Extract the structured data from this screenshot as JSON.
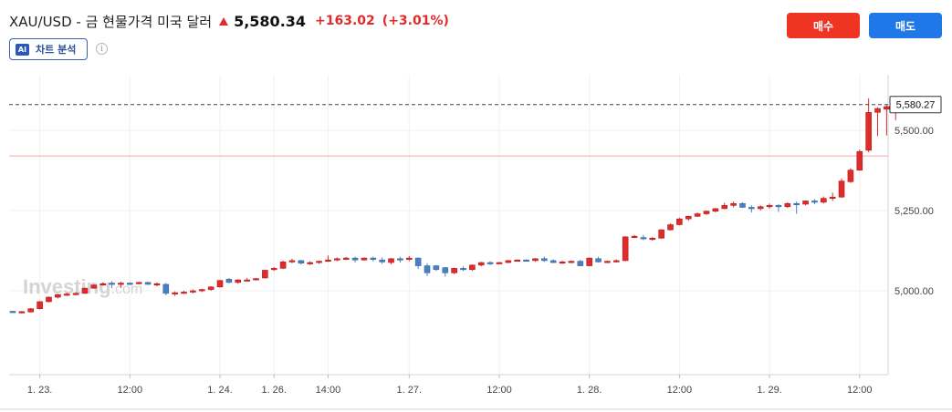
{
  "header": {
    "title": "XAU/USD - 금 현물가격 미국 달러",
    "price": "5,580.34",
    "change": "+163.02",
    "change_pct": "(+3.01%)"
  },
  "buttons": {
    "buy": "매수",
    "sell": "매도"
  },
  "ai": {
    "badge": "AI",
    "label": "차트 분석"
  },
  "info_icon": "i",
  "watermark": {
    "brand": "Investing",
    "suffix": ".com"
  },
  "colors": {
    "up": "#e02b2b",
    "down": "#4a80c2",
    "buy": "#ee3524",
    "sell": "#1f77e8"
  },
  "chart_data": {
    "type": "candlestick",
    "ylim": [
      4808,
      5760
    ],
    "yticks": [
      {
        "value": 5000,
        "label": "5,000.00"
      },
      {
        "value": 5250,
        "label": "5,250.00"
      },
      {
        "value": 5500,
        "label": "5,500.00"
      }
    ],
    "xticks": [
      {
        "index": 3,
        "label": "1. 23."
      },
      {
        "index": 13,
        "label": "12:00"
      },
      {
        "index": 23,
        "label": "1. 24."
      },
      {
        "index": 29,
        "label": "1. 26."
      },
      {
        "index": 35,
        "label": "14:00"
      },
      {
        "index": 44,
        "label": "1. 27."
      },
      {
        "index": 54,
        "label": "12:00"
      },
      {
        "index": 64,
        "label": "1. 28."
      },
      {
        "index": 74,
        "label": "12:00"
      },
      {
        "index": 84,
        "label": "1. 29."
      },
      {
        "index": 94,
        "label": "12:00"
      }
    ],
    "last_price": {
      "value": 5580.27,
      "label": "5,580.27"
    },
    "reference_line": 5420,
    "grid": true,
    "candles": [
      [
        4936,
        4938,
        4933,
        4935
      ],
      [
        4932,
        4937,
        4930,
        4935
      ],
      [
        4934,
        4946,
        4932,
        4944
      ],
      [
        4944,
        4968,
        4942,
        4966
      ],
      [
        4966,
        4982,
        4964,
        4980
      ],
      [
        4980,
        4990,
        4976,
        4988
      ],
      [
        4986,
        4994,
        4984,
        4990
      ],
      [
        4990,
        4996,
        4986,
        4992
      ],
      [
        4992,
        5010,
        4990,
        5008
      ],
      [
        5008,
        5020,
        5006,
        5018
      ],
      [
        5018,
        5026,
        5016,
        5022
      ],
      [
        5024,
        5030,
        5008,
        5022
      ],
      [
        5022,
        5028,
        5010,
        5024
      ],
      [
        5024,
        5026,
        5018,
        5022
      ],
      [
        5022,
        5028,
        5020,
        5026
      ],
      [
        5026,
        5028,
        5018,
        5020
      ],
      [
        5020,
        5026,
        5014,
        5022
      ],
      [
        5020,
        5024,
        4986,
        4992
      ],
      [
        4992,
        4998,
        4984,
        4994
      ],
      [
        4994,
        5000,
        4990,
        4996
      ],
      [
        4996,
        5004,
        4992,
        5000
      ],
      [
        5000,
        5006,
        4996,
        5004
      ],
      [
        5004,
        5014,
        5000,
        5012
      ],
      [
        5012,
        5034,
        5010,
        5032
      ],
      [
        5036,
        5040,
        5024,
        5026
      ],
      [
        5026,
        5036,
        5022,
        5034
      ],
      [
        5034,
        5040,
        5030,
        5034
      ],
      [
        5034,
        5040,
        5032,
        5038
      ],
      [
        5040,
        5066,
        5038,
        5064
      ],
      [
        5066,
        5074,
        5062,
        5070
      ],
      [
        5070,
        5094,
        5068,
        5090
      ],
      [
        5090,
        5100,
        5086,
        5094
      ],
      [
        5094,
        5096,
        5082,
        5086
      ],
      [
        5086,
        5092,
        5080,
        5088
      ],
      [
        5088,
        5094,
        5084,
        5092
      ],
      [
        5092,
        5110,
        5090,
        5096
      ],
      [
        5096,
        5104,
        5092,
        5100
      ],
      [
        5100,
        5106,
        5096,
        5102
      ],
      [
        5102,
        5106,
        5088,
        5096
      ],
      [
        5096,
        5104,
        5094,
        5102
      ],
      [
        5102,
        5106,
        5092,
        5100
      ],
      [
        5096,
        5104,
        5084,
        5090
      ],
      [
        5088,
        5102,
        5082,
        5100
      ],
      [
        5100,
        5106,
        5088,
        5098
      ],
      [
        5098,
        5108,
        5092,
        5102
      ],
      [
        5102,
        5104,
        5068,
        5078
      ],
      [
        5078,
        5086,
        5046,
        5056
      ],
      [
        5078,
        5080,
        5062,
        5066
      ],
      [
        5072,
        5074,
        5044,
        5056
      ],
      [
        5056,
        5072,
        5052,
        5070
      ],
      [
        5070,
        5076,
        5062,
        5066
      ],
      [
        5066,
        5082,
        5062,
        5080
      ],
      [
        5080,
        5090,
        5076,
        5088
      ],
      [
        5088,
        5092,
        5080,
        5086
      ],
      [
        5086,
        5090,
        5084,
        5088
      ],
      [
        5088,
        5096,
        5086,
        5094
      ],
      [
        5094,
        5098,
        5092,
        5096
      ],
      [
        5096,
        5098,
        5092,
        5094
      ],
      [
        5094,
        5102,
        5090,
        5100
      ],
      [
        5100,
        5106,
        5090,
        5094
      ],
      [
        5094,
        5098,
        5086,
        5088
      ],
      [
        5088,
        5094,
        5084,
        5090
      ],
      [
        5090,
        5094,
        5086,
        5092
      ],
      [
        5092,
        5096,
        5076,
        5078
      ],
      [
        5078,
        5104,
        5076,
        5102
      ],
      [
        5100,
        5106,
        5088,
        5090
      ],
      [
        5090,
        5094,
        5086,
        5092
      ],
      [
        5092,
        5098,
        5088,
        5094
      ],
      [
        5094,
        5170,
        5092,
        5168
      ],
      [
        5168,
        5174,
        5164,
        5170
      ],
      [
        5166,
        5174,
        5158,
        5162
      ],
      [
        5162,
        5168,
        5156,
        5164
      ],
      [
        5164,
        5192,
        5162,
        5190
      ],
      [
        5190,
        5210,
        5188,
        5206
      ],
      [
        5206,
        5228,
        5204,
        5224
      ],
      [
        5224,
        5234,
        5218,
        5232
      ],
      [
        5232,
        5244,
        5230,
        5240
      ],
      [
        5240,
        5250,
        5236,
        5248
      ],
      [
        5248,
        5258,
        5244,
        5256
      ],
      [
        5256,
        5274,
        5254,
        5266
      ],
      [
        5266,
        5278,
        5260,
        5272
      ],
      [
        5272,
        5276,
        5258,
        5260
      ],
      [
        5260,
        5266,
        5244,
        5256
      ],
      [
        5256,
        5266,
        5250,
        5262
      ],
      [
        5262,
        5272,
        5256,
        5266
      ],
      [
        5266,
        5270,
        5246,
        5262
      ],
      [
        5262,
        5276,
        5258,
        5272
      ],
      [
        5272,
        5278,
        5240,
        5270
      ],
      [
        5270,
        5282,
        5266,
        5280
      ],
      [
        5280,
        5286,
        5270,
        5276
      ],
      [
        5276,
        5294,
        5272,
        5288
      ],
      [
        5288,
        5306,
        5280,
        5292
      ],
      [
        5292,
        5350,
        5290,
        5342
      ],
      [
        5340,
        5382,
        5336,
        5376
      ],
      [
        5376,
        5440,
        5374,
        5434
      ],
      [
        5438,
        5600,
        5432,
        5556
      ],
      [
        5556,
        5572,
        5482,
        5568
      ],
      [
        5566,
        5578,
        5484,
        5574
      ],
      [
        5574,
        5582,
        5532,
        5578
      ],
      [
        5578,
        5588,
        5566,
        5582
      ],
      [
        5584,
        5588,
        5558,
        5580
      ]
    ]
  }
}
